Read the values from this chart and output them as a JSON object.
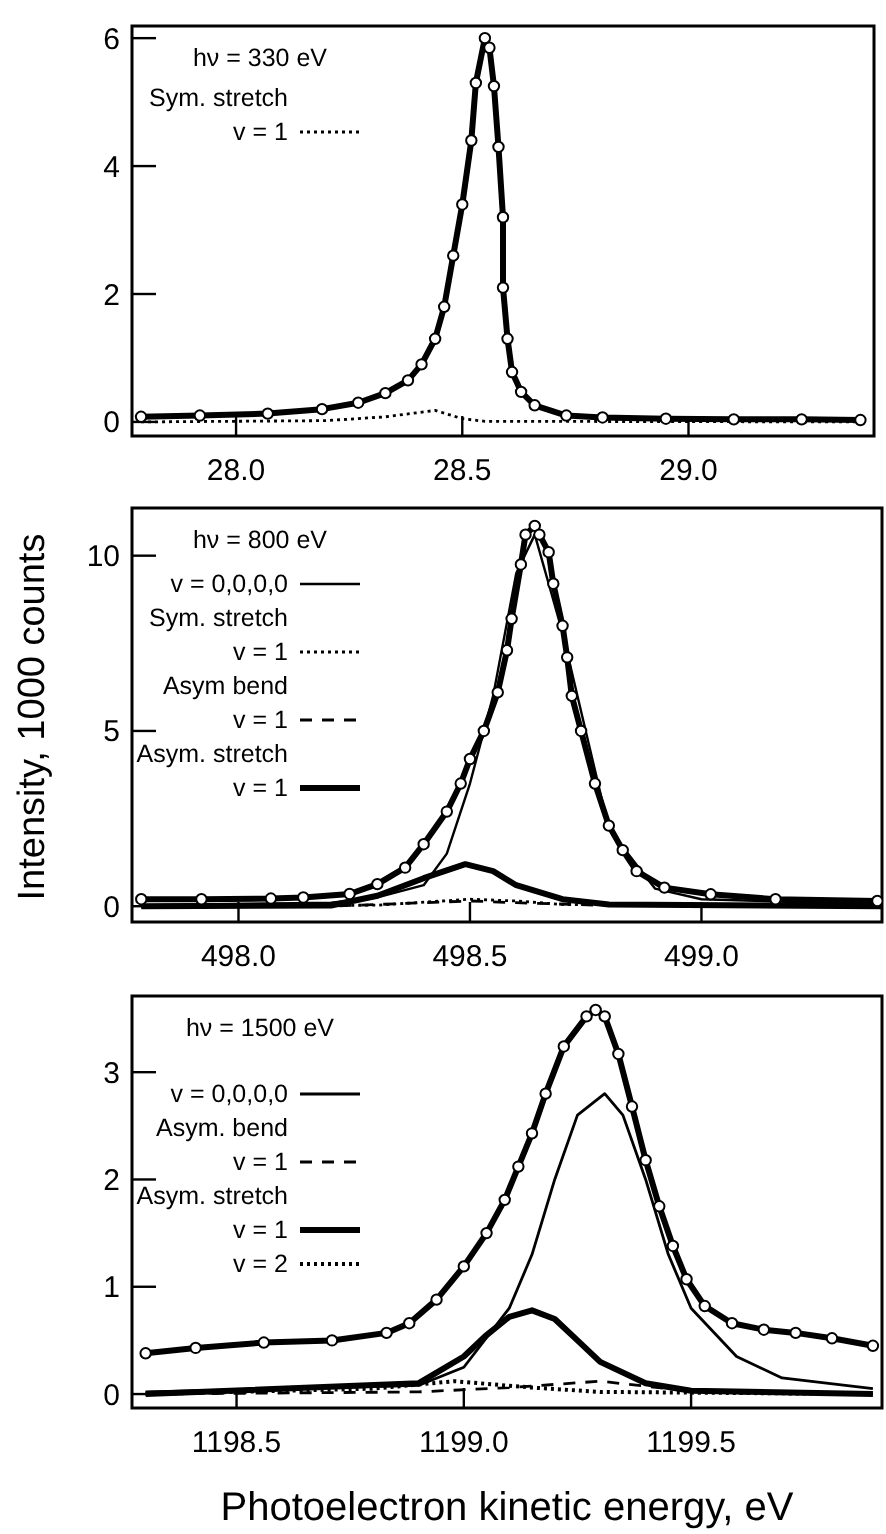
{
  "chart_data": [
    {
      "type": "line",
      "annotations": [
        "hν = 330 eV"
      ],
      "xlim": [
        27.77,
        29.41
      ],
      "ylim": [
        -0.22,
        6.19
      ],
      "xticks": [
        {
          "value": 28,
          "label": "28.0"
        },
        {
          "value": 28.5,
          "label": "28.5"
        },
        {
          "value": 29,
          "label": "29.0"
        }
      ],
      "yticks": [
        0,
        2,
        4,
        6
      ],
      "legend": "top left",
      "series": [
        {
          "type": "scatter",
          "marker": "circle",
          "color": "#000000",
          "x": [
            27.79,
            27.92,
            28.07,
            28.19,
            28.27,
            28.33,
            28.38,
            28.41,
            28.44,
            28.46,
            28.48,
            28.5,
            28.52,
            28.53,
            28.55,
            28.56,
            28.57,
            28.58,
            28.59,
            28.59,
            28.6,
            28.61,
            28.63,
            28.66,
            28.73,
            28.81,
            28.95,
            29.1,
            29.25,
            29.38
          ],
          "values": [
            0.08,
            0.1,
            0.13,
            0.2,
            0.3,
            0.45,
            0.65,
            0.9,
            1.3,
            1.8,
            2.6,
            3.4,
            4.4,
            5.3,
            6.0,
            5.85,
            5.25,
            4.3,
            3.2,
            2.1,
            1.3,
            0.78,
            0.47,
            0.26,
            0.1,
            0.07,
            0.05,
            0.04,
            0.04,
            0.03
          ]
        },
        {
          "type": "line",
          "line_style": "solid",
          "color": "#000000",
          "x": [
            27.79,
            27.92,
            28.07,
            28.19,
            28.27,
            28.33,
            28.38,
            28.41,
            28.44,
            28.46,
            28.48,
            28.5,
            28.52,
            28.53,
            28.55,
            28.56,
            28.57,
            28.58,
            28.59,
            28.59,
            28.6,
            28.61,
            28.63,
            28.66,
            28.73,
            28.81,
            28.95,
            29.1,
            29.25,
            29.38
          ],
          "values": [
            0.08,
            0.1,
            0.13,
            0.2,
            0.3,
            0.45,
            0.65,
            0.9,
            1.3,
            1.8,
            2.6,
            3.4,
            4.4,
            5.3,
            6.0,
            5.85,
            5.25,
            4.3,
            3.2,
            2.1,
            1.3,
            0.78,
            0.47,
            0.26,
            0.1,
            0.07,
            0.05,
            0.04,
            0.04,
            0.03
          ]
        },
        {
          "type": "line",
          "name": "Sym. stretch\nv = 1",
          "line_style": "dotted",
          "color": "#000000",
          "x": [
            27.79,
            28.2,
            28.33,
            28.44,
            28.5,
            28.55,
            29.38
          ],
          "values": [
            0,
            0.02,
            0.08,
            0.18,
            0.05,
            0.01,
            0
          ]
        }
      ]
    },
    {
      "type": "line",
      "ylabel": "Intensity,  1000 counts",
      "annotations": [
        "hν = 800 eV"
      ],
      "xlim": [
        497.77,
        499.39
      ],
      "ylim": [
        -0.45,
        11.36
      ],
      "xticks": [
        {
          "value": 498,
          "label": "498.0"
        },
        {
          "value": 498.5,
          "label": "498.5"
        },
        {
          "value": 499,
          "label": "499.0"
        }
      ],
      "yticks": [
        0,
        5,
        10
      ],
      "legend": "top left",
      "series": [
        {
          "type": "scatter",
          "marker": "circle",
          "color": "#000000",
          "x": [
            497.79,
            497.92,
            498.07,
            498.14,
            498.24,
            498.3,
            498.36,
            498.4,
            498.45,
            498.48,
            498.5,
            498.53,
            498.56,
            498.58,
            498.59,
            498.61,
            498.62,
            498.64,
            498.65,
            498.67,
            498.68,
            498.7,
            498.71,
            498.72,
            498.74,
            498.77,
            498.8,
            498.83,
            498.86,
            498.92,
            499.02,
            499.16,
            499.38
          ],
          "values": [
            0.2,
            0.2,
            0.22,
            0.25,
            0.35,
            0.63,
            1.1,
            1.77,
            2.7,
            3.5,
            4.2,
            5.0,
            6.1,
            7.3,
            8.2,
            9.75,
            10.6,
            10.85,
            10.6,
            10.1,
            9.2,
            8.0,
            7.1,
            6.0,
            5.0,
            3.5,
            2.3,
            1.6,
            1.0,
            0.53,
            0.34,
            0.2,
            0.15
          ]
        },
        {
          "type": "line",
          "line_style": "solid",
          "color": "#000000",
          "x": [
            497.79,
            497.92,
            498.07,
            498.14,
            498.24,
            498.3,
            498.36,
            498.4,
            498.45,
            498.48,
            498.5,
            498.53,
            498.56,
            498.58,
            498.59,
            498.61,
            498.62,
            498.64,
            498.65,
            498.67,
            498.68,
            498.7,
            498.71,
            498.72,
            498.74,
            498.77,
            498.8,
            498.83,
            498.86,
            498.92,
            499.02,
            499.16,
            499.38
          ],
          "values": [
            0.2,
            0.2,
            0.22,
            0.25,
            0.35,
            0.63,
            1.1,
            1.77,
            2.7,
            3.5,
            4.2,
            5.0,
            6.1,
            7.3,
            8.2,
            9.75,
            10.6,
            10.85,
            10.6,
            10.1,
            9.2,
            8.0,
            7.1,
            6.0,
            5.0,
            3.5,
            2.3,
            1.6,
            1.0,
            0.53,
            0.34,
            0.2,
            0.15
          ]
        },
        {
          "type": "line",
          "name": "v = 0,0,0,0",
          "line_style": "solid",
          "color": "#000000",
          "x": [
            497.79,
            498.2,
            498.3,
            498.4,
            498.45,
            498.5,
            498.55,
            498.6,
            498.64,
            498.7,
            498.8,
            498.9,
            499.0,
            499.39
          ],
          "values": [
            0.03,
            0.1,
            0.25,
            0.6,
            1.5,
            3.5,
            6.0,
            9.5,
            10.6,
            7.8,
            2.2,
            0.5,
            0.2,
            0.05
          ]
        },
        {
          "type": "line",
          "name": "Sym. stretch\nv = 1",
          "line_style": "dotted",
          "color": "#000000",
          "x": [
            497.79,
            498.3,
            498.5,
            498.6,
            498.7,
            499.39
          ],
          "values": [
            0,
            0.03,
            0.2,
            0.15,
            0.05,
            0
          ]
        },
        {
          "type": "line",
          "name": "Asym bend\nv = 1",
          "line_style": "dashed",
          "color": "#000000",
          "x": [
            497.79,
            498.2,
            498.4,
            498.5,
            498.6,
            498.8,
            499.39
          ],
          "values": [
            0,
            0,
            0.1,
            0.15,
            0.1,
            0.02,
            0
          ]
        },
        {
          "type": "line",
          "name": "Asym. stretch\nv = 1",
          "line_style": "solid",
          "color": "#000000",
          "x": [
            497.79,
            498.2,
            498.3,
            498.4,
            498.49,
            498.55,
            498.6,
            498.7,
            498.8,
            499.39
          ],
          "values": [
            0,
            0.02,
            0.3,
            0.8,
            1.2,
            1.0,
            0.6,
            0.2,
            0.05,
            0
          ]
        }
      ]
    },
    {
      "type": "line",
      "xlabel": "Photoelectron kinetic energy, eV",
      "annotations": [
        "hν = 1500 eV"
      ],
      "xlim": [
        1198.27,
        1199.92
      ],
      "ylim": [
        -0.13,
        3.71
      ],
      "xticks": [
        {
          "value": 1198.5,
          "label": "1198.5"
        },
        {
          "value": 1199,
          "label": "1199.0"
        },
        {
          "value": 1199.5,
          "label": "1199.5"
        }
      ],
      "yticks": [
        0,
        1,
        2,
        3
      ],
      "legend": "top left",
      "series": [
        {
          "type": "scatter",
          "marker": "circle",
          "color": "#000000",
          "x": [
            1198.3,
            1198.41,
            1198.56,
            1198.71,
            1198.83,
            1198.88,
            1198.94,
            1199.0,
            1199.05,
            1199.09,
            1199.12,
            1199.15,
            1199.18,
            1199.22,
            1199.27,
            1199.29,
            1199.31,
            1199.34,
            1199.37,
            1199.4,
            1199.43,
            1199.46,
            1199.49,
            1199.53,
            1199.59,
            1199.66,
            1199.73,
            1199.81,
            1199.9
          ],
          "values": [
            0.38,
            0.43,
            0.48,
            0.5,
            0.57,
            0.66,
            0.88,
            1.19,
            1.5,
            1.81,
            2.12,
            2.43,
            2.8,
            3.24,
            3.52,
            3.58,
            3.52,
            3.17,
            2.68,
            2.18,
            1.75,
            1.38,
            1.07,
            0.82,
            0.66,
            0.6,
            0.57,
            0.52,
            0.45
          ]
        },
        {
          "type": "line",
          "line_style": "solid",
          "color": "#000000",
          "x": [
            1198.3,
            1198.41,
            1198.56,
            1198.71,
            1198.83,
            1198.88,
            1198.94,
            1199.0,
            1199.05,
            1199.09,
            1199.12,
            1199.15,
            1199.18,
            1199.22,
            1199.27,
            1199.29,
            1199.31,
            1199.34,
            1199.37,
            1199.4,
            1199.43,
            1199.46,
            1199.49,
            1199.53,
            1199.59,
            1199.66,
            1199.73,
            1199.81,
            1199.9
          ],
          "values": [
            0.38,
            0.43,
            0.48,
            0.5,
            0.57,
            0.66,
            0.88,
            1.19,
            1.5,
            1.81,
            2.12,
            2.43,
            2.8,
            3.24,
            3.52,
            3.58,
            3.52,
            3.17,
            2.68,
            2.18,
            1.75,
            1.38,
            1.07,
            0.82,
            0.66,
            0.6,
            0.57,
            0.52,
            0.45
          ]
        },
        {
          "type": "line",
          "name": "v = 0,0,0,0",
          "line_style": "solid",
          "color": "#000000",
          "x": [
            1198.3,
            1198.9,
            1199.0,
            1199.1,
            1199.15,
            1199.2,
            1199.25,
            1199.31,
            1199.35,
            1199.4,
            1199.45,
            1199.5,
            1199.6,
            1199.7,
            1199.9
          ],
          "values": [
            0.02,
            0.08,
            0.25,
            0.8,
            1.3,
            2.0,
            2.6,
            2.8,
            2.6,
            2.0,
            1.3,
            0.8,
            0.35,
            0.15,
            0.05
          ]
        },
        {
          "type": "line",
          "name": "Asym. bend\nv = 1",
          "line_style": "dashed",
          "color": "#000000",
          "x": [
            1198.3,
            1198.9,
            1199.1,
            1199.3,
            1199.45,
            1199.6,
            1199.9
          ],
          "values": [
            0,
            0.02,
            0.06,
            0.12,
            0.05,
            0.01,
            0
          ]
        },
        {
          "type": "line",
          "name": "Asym. stretch\nv = 1",
          "line_style": "solid",
          "color": "#000000",
          "x": [
            1198.3,
            1198.9,
            1199.0,
            1199.05,
            1199.1,
            1199.15,
            1199.2,
            1199.25,
            1199.3,
            1199.4,
            1199.5,
            1199.9
          ],
          "values": [
            0,
            0.1,
            0.35,
            0.55,
            0.72,
            0.78,
            0.7,
            0.5,
            0.3,
            0.1,
            0.03,
            0
          ]
        },
        {
          "type": "line",
          "name": "v = 2",
          "line_style": "dotted",
          "color": "#000000",
          "x": [
            1198.3,
            1198.8,
            1198.98,
            1199.15,
            1199.3,
            1199.9
          ],
          "values": [
            0,
            0.05,
            0.12,
            0.06,
            0.02,
            0
          ]
        }
      ]
    }
  ]
}
